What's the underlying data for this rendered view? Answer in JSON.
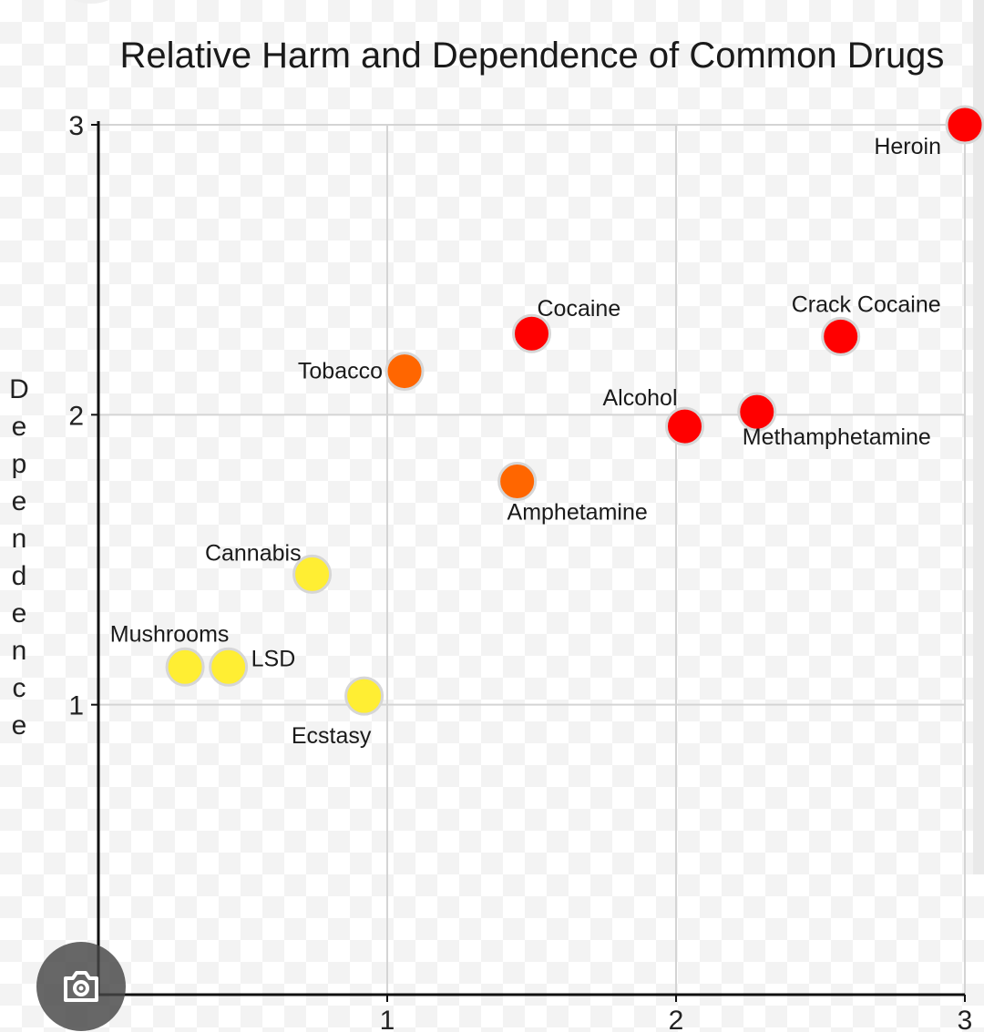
{
  "chart_data": {
    "type": "scatter",
    "title": "Relative Harm and Dependence of Common Drugs",
    "xlabel": "",
    "ylabel": "Dependence",
    "xlim": [
      0,
      3
    ],
    "ylim": [
      0,
      3
    ],
    "xticks": [
      "1",
      "2",
      "3"
    ],
    "yticks": [
      "1",
      "2",
      "3"
    ],
    "grid": true,
    "points": [
      {
        "label": "Heroin",
        "x": 3.0,
        "y": 3.0,
        "color": "#ff0000"
      },
      {
        "label": "Cocaine",
        "x": 1.5,
        "y": 2.28,
        "color": "#ff0000"
      },
      {
        "label": "Crack Cocaine",
        "x": 2.57,
        "y": 2.27,
        "color": "#ff0000"
      },
      {
        "label": "Tobacco",
        "x": 1.06,
        "y": 2.15,
        "color": "#ff6600"
      },
      {
        "label": "Alcohol",
        "x": 2.03,
        "y": 1.96,
        "color": "#ff0000"
      },
      {
        "label": "Methamphetamine",
        "x": 2.28,
        "y": 2.01,
        "color": "#ff0000"
      },
      {
        "label": "Amphetamine",
        "x": 1.45,
        "y": 1.77,
        "color": "#ff6600"
      },
      {
        "label": "Cannabis",
        "x": 0.74,
        "y": 1.45,
        "color": "#ffee33"
      },
      {
        "label": "Mushrooms",
        "x": 0.3,
        "y": 1.13,
        "color": "#ffee33"
      },
      {
        "label": "LSD",
        "x": 0.45,
        "y": 1.13,
        "color": "#ffee33"
      },
      {
        "label": "Ecstasy",
        "x": 0.92,
        "y": 1.03,
        "color": "#ffee33"
      }
    ]
  },
  "icons": {
    "camera": "camera-search-icon"
  }
}
